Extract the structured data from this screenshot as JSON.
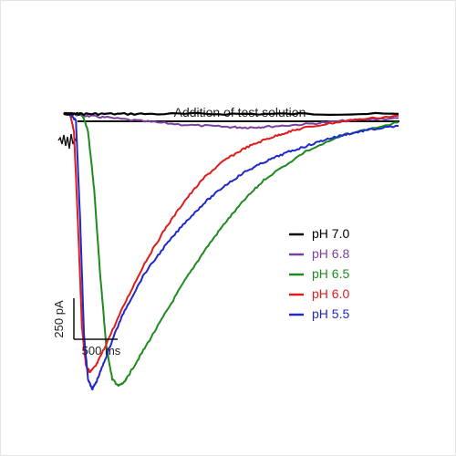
{
  "chart_data": {
    "type": "line",
    "title": "",
    "xlabel": "",
    "ylabel": "",
    "annotation": {
      "text": "Addition of test solution",
      "x_start_ms": 35,
      "x_end_ms": 1660
    },
    "scale_bar": {
      "x_value": 500,
      "x_label": "500 ms",
      "y_value": 250,
      "y_label": "250 pA"
    },
    "xlim": [
      0,
      1660
    ],
    "ylim": [
      -840,
      40
    ],
    "x_units": "ms",
    "y_units": "pA",
    "legend_position": "right",
    "series": [
      {
        "name": "pH 7.0",
        "color": "#000000",
        "x": [
          0,
          30,
          80,
          200,
          400,
          800,
          1200,
          1660
        ],
        "y": [
          0,
          0,
          0,
          0,
          0,
          0,
          0,
          0
        ]
      },
      {
        "name": "pH 6.8",
        "color": "#7b3f9e",
        "x": [
          0,
          30,
          100,
          200,
          400,
          600,
          800,
          900,
          1000,
          1200,
          1400,
          1660
        ],
        "y": [
          0,
          0,
          -5,
          -10,
          -22,
          -32,
          -38,
          -40,
          -38,
          -30,
          -20,
          -12
        ]
      },
      {
        "name": "pH 6.5",
        "color": "#1f8a1f",
        "x": [
          0,
          30,
          90,
          120,
          150,
          180,
          210,
          240,
          270,
          300,
          330,
          400,
          500,
          600,
          700,
          800,
          900,
          1000,
          1200,
          1400,
          1660
        ],
        "y": [
          0,
          0,
          0,
          -50,
          -220,
          -470,
          -680,
          -780,
          -800,
          -790,
          -760,
          -690,
          -590,
          -490,
          -400,
          -320,
          -250,
          -190,
          -110,
          -60,
          -25
        ]
      },
      {
        "name": "pH 6.0",
        "color": "#e01b1b",
        "x": [
          0,
          30,
          50,
          70,
          90,
          110,
          130,
          160,
          200,
          300,
          400,
          500,
          600,
          700,
          800,
          900,
          1000,
          1100,
          1200,
          1400,
          1660
        ],
        "y": [
          0,
          0,
          -50,
          -320,
          -630,
          -740,
          -760,
          -740,
          -690,
          -560,
          -440,
          -340,
          -255,
          -185,
          -135,
          -100,
          -75,
          -55,
          -40,
          -20,
          -5
        ]
      },
      {
        "name": "pH 5.5",
        "color": "#1f28c8",
        "x": [
          0,
          30,
          60,
          80,
          100,
          120,
          140,
          160,
          200,
          250,
          300,
          400,
          500,
          600,
          700,
          800,
          900,
          1000,
          1100,
          1200,
          1300,
          1400,
          1500,
          1660
        ],
        "y": [
          0,
          0,
          -20,
          -300,
          -650,
          -780,
          -810,
          -790,
          -730,
          -650,
          -580,
          -470,
          -390,
          -320,
          -260,
          -210,
          -170,
          -140,
          -115,
          -95,
          -75,
          -60,
          -48,
          -35
        ]
      }
    ]
  }
}
